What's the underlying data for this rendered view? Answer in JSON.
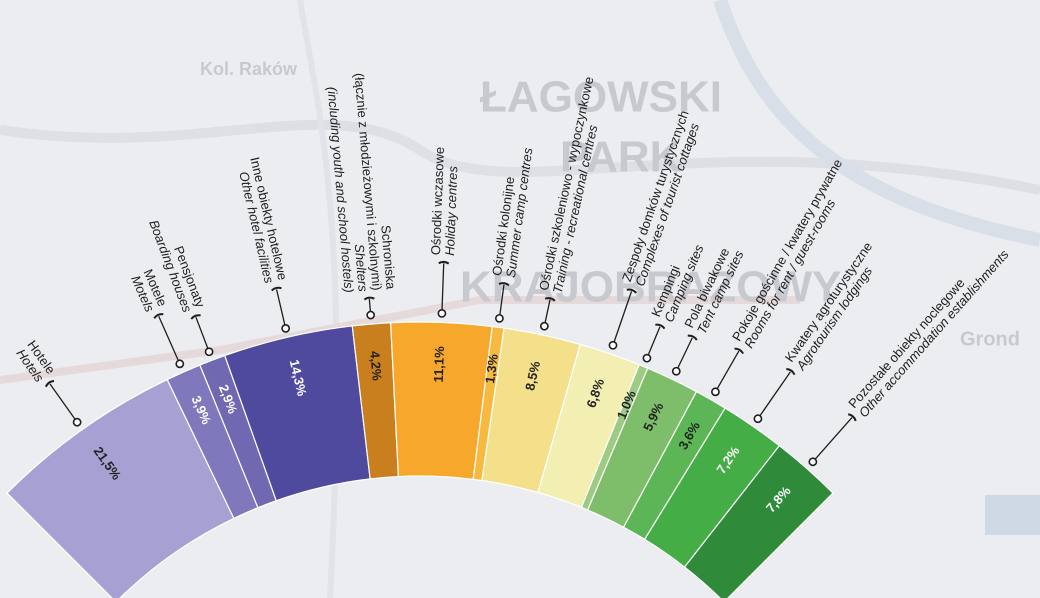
{
  "chart_data": {
    "type": "fan",
    "categories": [
      "Hotele",
      "Motele",
      "Pensjonaty",
      "Inne obiekty hotelowe",
      "Schroniska\n(łącznie z młodzieżowymi i szkolnymi)",
      "Ośrodki wczasowe",
      "Ośrodki kolonijne",
      "Ośrodki szkoleniowo - wypoczynkowe",
      "Zespoły domków turystycznych",
      "Kempingi",
      "Pola biwakowe",
      "Pokoje gościnne / kwatery prywatne",
      "Kwatery agroturystyczne",
      "Pozostałe obiekty noclegowe"
    ],
    "categories_en": [
      "Hotels",
      "Motels",
      "Boarding houses",
      "Other hotel facilities",
      "Shelters\n(including youth and school hostels)",
      "Holiday centres",
      "Summer camp centres",
      "Training - recreational centres",
      "Complexes of tourist cottages",
      "Camping sites",
      "Tent camp sites",
      "Rooms for rent / guest-rooms",
      "Agrotourism lodgings",
      "Other accommodation establishments"
    ],
    "values": [
      21.5,
      3.9,
      2.9,
      14.3,
      4.2,
      11.1,
      1.3,
      8.5,
      6.8,
      1.0,
      5.9,
      3.6,
      7.2,
      7.8
    ],
    "value_labels": [
      "21,5%",
      "3,9%",
      "2,9%",
      "14,3%",
      "4,2%",
      "11,1%",
      "1,3%",
      "8,5%",
      "6,8%",
      "1,0%",
      "5,9%",
      "3,6%",
      "7,2%",
      "7,8%"
    ],
    "colors": [
      "#a6a1d2",
      "#7f78bc",
      "#7068b1",
      "#504a9f",
      "#c97f1d",
      "#f6a72c",
      "#f7b940",
      "#f4e08a",
      "#f3efb2",
      "#9ecb84",
      "#7ebd6a",
      "#5db655",
      "#45ad45",
      "#2f8a3a"
    ],
    "value_label_colors": [
      "#222222",
      "#ffffff",
      "#ffffff",
      "#ffffff",
      "#222222",
      "#222222",
      "#222222",
      "#222222",
      "#222222",
      "#222222",
      "#222222",
      "#222222",
      "#ffffff",
      "#ffffff"
    ],
    "map_labels": [
      "Kol. Raków",
      "ŁAGOWSKI",
      "PARK",
      "KRAJOBRAZOWY",
      "Grond"
    ]
  }
}
